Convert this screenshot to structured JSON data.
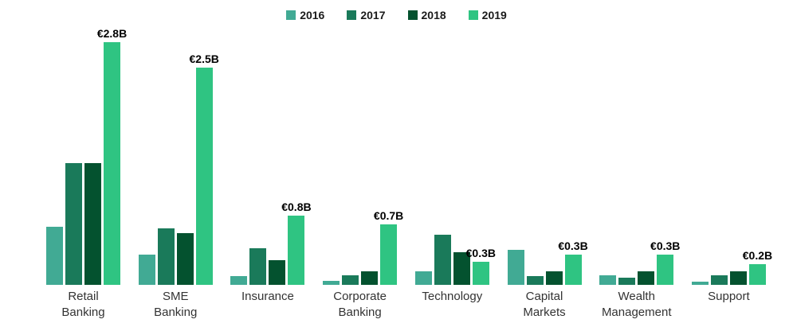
{
  "chart_data": {
    "type": "bar",
    "title": "",
    "unit": "EUR billions",
    "categories": [
      "Retail Banking",
      "SME Banking",
      "Insurance",
      "Corporate Banking",
      "Technology",
      "Capital Markets",
      "Wealth Management",
      "Support"
    ],
    "category_label_lines": [
      [
        "Retail",
        "Banking"
      ],
      [
        "SME",
        "Banking"
      ],
      [
        "Insurance"
      ],
      [
        "Corporate",
        "Banking"
      ],
      [
        "Technology"
      ],
      [
        "Capital",
        "Markets"
      ],
      [
        "Wealth",
        "Management"
      ],
      [
        "Support"
      ]
    ],
    "series": [
      {
        "name": "2016",
        "color": "#41AA94",
        "values": [
          0.67,
          0.35,
          0.1,
          0.05,
          0.16,
          0.4,
          0.11,
          0.04
        ]
      },
      {
        "name": "2017",
        "color": "#1A7A5A",
        "values": [
          1.4,
          0.65,
          0.42,
          0.11,
          0.58,
          0.1,
          0.08,
          0.11
        ]
      },
      {
        "name": "2018",
        "color": "#04522F",
        "values": [
          1.4,
          0.6,
          0.28,
          0.16,
          0.38,
          0.16,
          0.16,
          0.16
        ]
      },
      {
        "name": "2019",
        "color": "#2FC482",
        "values": [
          2.8,
          2.5,
          0.8,
          0.7,
          0.27,
          0.35,
          0.35,
          0.24
        ]
      }
    ],
    "value_labels": [
      "€2.8B",
      "€2.5B",
      "€0.8B",
      "€0.7B",
      "€0.3B",
      "€0.3B",
      "€0.3B",
      "€0.2B"
    ],
    "value_labels_on_series": "2019",
    "legend": {
      "position": "top-center",
      "items": [
        "2016",
        "2017",
        "2018",
        "2019"
      ]
    },
    "axes": {
      "y_axis_visible": false,
      "x_axis_visible": false,
      "grid": false,
      "ylim": [
        0,
        3.0
      ]
    }
  },
  "colors": {
    "background": "#ffffff",
    "annotation_text": "#000000",
    "category_text": "#333333",
    "legend_text": "#1a1a1a"
  }
}
